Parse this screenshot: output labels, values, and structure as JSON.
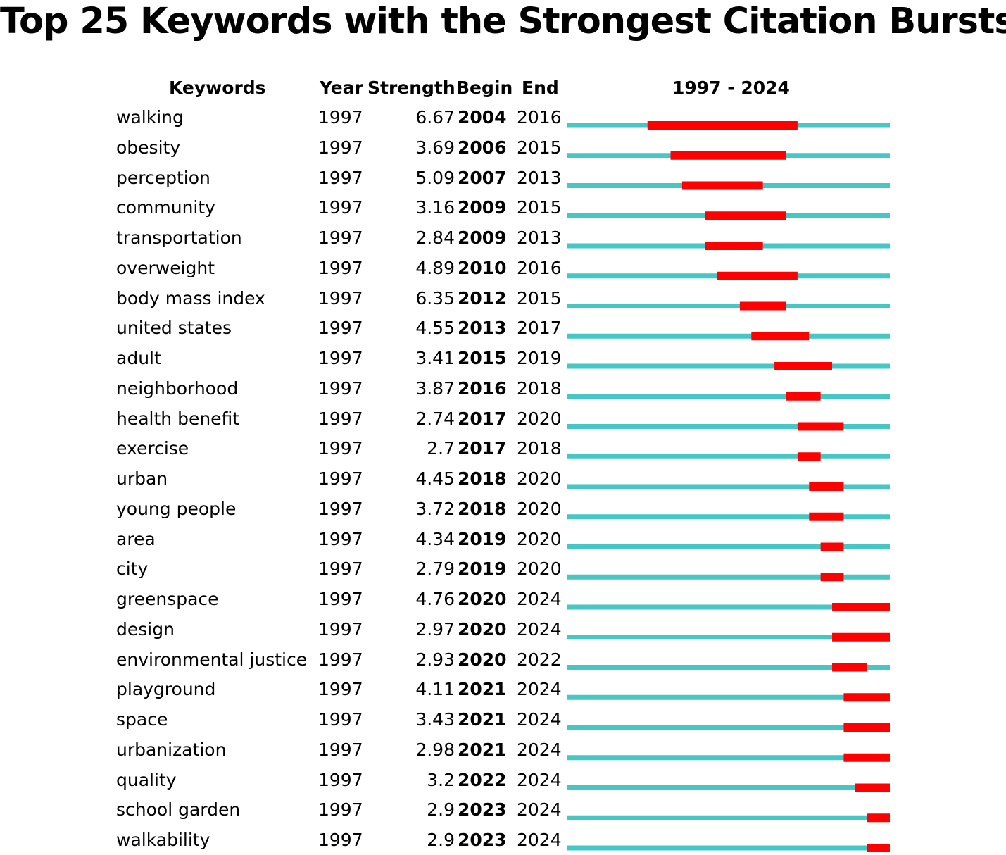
{
  "chart_data": {
    "type": "table",
    "title": "Top 25 Keywords with the Strongest Citation Bursts",
    "headers": {
      "keywords": "Keywords",
      "year": "Year",
      "strength": "Strength",
      "begin": "Begin",
      "end": "End",
      "range": "1997 - 2024"
    },
    "range_start": 1997,
    "range_end": 2024,
    "colors": {
      "baseline": "#47c6c6",
      "burst": "#ff0000"
    },
    "rows": [
      {
        "keyword": "walking",
        "year": "1997",
        "strength": "6.67",
        "begin": "2004",
        "end": "2016"
      },
      {
        "keyword": "obesity",
        "year": "1997",
        "strength": "3.69",
        "begin": "2006",
        "end": "2015"
      },
      {
        "keyword": "perception",
        "year": "1997",
        "strength": "5.09",
        "begin": "2007",
        "end": "2013"
      },
      {
        "keyword": "community",
        "year": "1997",
        "strength": "3.16",
        "begin": "2009",
        "end": "2015"
      },
      {
        "keyword": "transportation",
        "year": "1997",
        "strength": "2.84",
        "begin": "2009",
        "end": "2013"
      },
      {
        "keyword": "overweight",
        "year": "1997",
        "strength": "4.89",
        "begin": "2010",
        "end": "2016"
      },
      {
        "keyword": "body mass index",
        "year": "1997",
        "strength": "6.35",
        "begin": "2012",
        "end": "2015"
      },
      {
        "keyword": "united states",
        "year": "1997",
        "strength": "4.55",
        "begin": "2013",
        "end": "2017"
      },
      {
        "keyword": "adult",
        "year": "1997",
        "strength": "3.41",
        "begin": "2015",
        "end": "2019"
      },
      {
        "keyword": "neighborhood",
        "year": "1997",
        "strength": "3.87",
        "begin": "2016",
        "end": "2018"
      },
      {
        "keyword": "health benefit",
        "year": "1997",
        "strength": "2.74",
        "begin": "2017",
        "end": "2020"
      },
      {
        "keyword": "exercise",
        "year": "1997",
        "strength": "2.7",
        "begin": "2017",
        "end": "2018"
      },
      {
        "keyword": "urban",
        "year": "1997",
        "strength": "4.45",
        "begin": "2018",
        "end": "2020"
      },
      {
        "keyword": "young people",
        "year": "1997",
        "strength": "3.72",
        "begin": "2018",
        "end": "2020"
      },
      {
        "keyword": "area",
        "year": "1997",
        "strength": "4.34",
        "begin": "2019",
        "end": "2020"
      },
      {
        "keyword": "city",
        "year": "1997",
        "strength": "2.79",
        "begin": "2019",
        "end": "2020"
      },
      {
        "keyword": "greenspace",
        "year": "1997",
        "strength": "4.76",
        "begin": "2020",
        "end": "2024"
      },
      {
        "keyword": "design",
        "year": "1997",
        "strength": "2.97",
        "begin": "2020",
        "end": "2024"
      },
      {
        "keyword": "environmental justice",
        "year": "1997",
        "strength": "2.93",
        "begin": "2020",
        "end": "2022"
      },
      {
        "keyword": "playground",
        "year": "1997",
        "strength": "4.11",
        "begin": "2021",
        "end": "2024"
      },
      {
        "keyword": "space",
        "year": "1997",
        "strength": "3.43",
        "begin": "2021",
        "end": "2024"
      },
      {
        "keyword": "urbanization",
        "year": "1997",
        "strength": "2.98",
        "begin": "2021",
        "end": "2024"
      },
      {
        "keyword": "quality",
        "year": "1997",
        "strength": "3.2",
        "begin": "2022",
        "end": "2024"
      },
      {
        "keyword": "school garden",
        "year": "1997",
        "strength": "2.9",
        "begin": "2023",
        "end": "2024"
      },
      {
        "keyword": "walkability",
        "year": "1997",
        "strength": "2.9",
        "begin": "2023",
        "end": "2024"
      }
    ]
  }
}
